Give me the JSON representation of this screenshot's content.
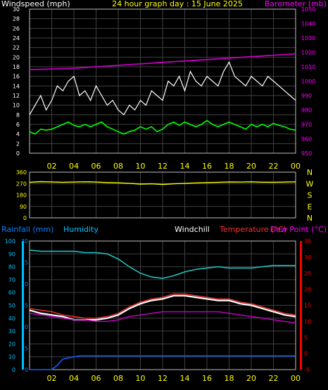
{
  "colors": {
    "background": "#000000",
    "axis": "#c0c0c0",
    "grid": "#404040",
    "label_white": "#ffffff",
    "label_yellow": "#ffff00",
    "label_magenta": "#ff00ff",
    "label_red": "#ff0000",
    "label_blue": "#0080ff",
    "label_cyan": "#00c0ff",
    "wind_gust": "#ffffff",
    "wind_avg": "#00ff00",
    "barometer": "#c000c0",
    "wind_direction": "#ffff00",
    "humidity": "#20c0c0",
    "temperature": "#ff3030",
    "dew_point": "#c000c0",
    "windchill": "#ffffff",
    "rainfall": "#1060ff"
  },
  "chart_data": [
    {
      "type": "line",
      "title": "24 hour graph day : 15 June 2025",
      "left_axis_label": "Windspeed (mph)",
      "right_axis_label": "Barometer (mb)",
      "ylim": [
        0,
        30
      ],
      "y_ticks": [
        "0",
        "2",
        "4",
        "6",
        "8",
        "10",
        "12",
        "14",
        "16",
        "18",
        "20",
        "22",
        "24",
        "26",
        "28",
        "30"
      ],
      "y2lim": [
        950,
        1050
      ],
      "y2_ticks": [
        "950",
        "960",
        "970",
        "980",
        "990",
        "1000",
        "1010",
        "1020",
        "1030",
        "1040",
        "1050"
      ],
      "xlim": [
        0,
        24
      ],
      "x_ticks": [
        "02",
        "04",
        "06",
        "08",
        "10",
        "12",
        "14",
        "16",
        "18",
        "20",
        "22",
        "00"
      ],
      "grid": true,
      "series": [
        {
          "key": "gust",
          "axis": "left",
          "x": [
            0,
            0.5,
            1,
            1.5,
            2,
            2.5,
            3,
            3.5,
            4,
            4.5,
            5,
            5.5,
            6,
            6.5,
            7,
            7.5,
            8,
            8.5,
            9,
            9.5,
            10,
            10.5,
            11,
            11.5,
            12,
            12.5,
            13,
            13.5,
            14,
            14.5,
            15,
            15.5,
            16,
            16.5,
            17,
            17.5,
            18,
            18.5,
            19,
            19.5,
            20,
            20.5,
            21,
            21.5,
            22,
            22.5,
            23,
            23.5,
            24
          ],
          "values": [
            8,
            10,
            12,
            9,
            11,
            14,
            13,
            15,
            16,
            12,
            13,
            11,
            14,
            12,
            10,
            11,
            9,
            8,
            10,
            9,
            11,
            10,
            13,
            12,
            11,
            15,
            14,
            16,
            13,
            17,
            15,
            14,
            16,
            15,
            14,
            17,
            19,
            16,
            15,
            14,
            16,
            15,
            14,
            16,
            15,
            14,
            13,
            12,
            11
          ]
        },
        {
          "key": "average",
          "axis": "left",
          "x": [
            0,
            0.5,
            1,
            1.5,
            2,
            2.5,
            3,
            3.5,
            4,
            4.5,
            5,
            5.5,
            6,
            6.5,
            7,
            7.5,
            8,
            8.5,
            9,
            9.5,
            10,
            10.5,
            11,
            11.5,
            12,
            12.5,
            13,
            13.5,
            14,
            14.5,
            15,
            15.5,
            16,
            16.5,
            17,
            17.5,
            18,
            18.5,
            19,
            19.5,
            20,
            20.5,
            21,
            21.5,
            22,
            22.5,
            23,
            23.5,
            24
          ],
          "values": [
            4.5,
            4,
            5,
            4.8,
            5,
            5.5,
            6,
            6.5,
            5.8,
            5.5,
            6,
            5.5,
            6,
            6.5,
            5.5,
            5,
            4.5,
            4,
            4.5,
            4.8,
            5.5,
            5,
            5.5,
            4.5,
            5,
            6,
            6.5,
            5.8,
            6.5,
            6,
            5.5,
            6,
            6.8,
            6,
            5.5,
            6,
            6.5,
            6,
            5.5,
            5,
            6,
            5.5,
            6,
            5.5,
            6.2,
            5.8,
            5.5,
            5,
            4.8
          ]
        },
        {
          "key": "barometer",
          "axis": "right",
          "x": [
            0,
            2,
            4,
            6,
            8,
            10,
            12,
            14,
            16,
            18,
            20,
            22,
            24
          ],
          "values": [
            1008,
            1008.5,
            1009,
            1010,
            1011,
            1012,
            1013,
            1014,
            1015,
            1016,
            1017,
            1018,
            1019
          ]
        }
      ]
    },
    {
      "type": "line",
      "title": "",
      "ylim": [
        0,
        360
      ],
      "y_ticks": [
        "0",
        "90",
        "180",
        "270",
        "360"
      ],
      "right_labels": [
        "N",
        "W",
        "S",
        "E",
        "N"
      ],
      "xlim": [
        0,
        24
      ],
      "grid": true,
      "series": [
        {
          "key": "direction",
          "x": [
            0,
            1,
            2,
            3,
            4,
            5,
            6,
            7,
            8,
            9,
            10,
            11,
            12,
            13,
            14,
            15,
            16,
            17,
            18,
            19,
            20,
            21,
            22,
            23,
            24
          ],
          "values": [
            280,
            285,
            283,
            280,
            282,
            284,
            282,
            278,
            276,
            272,
            266,
            268,
            263,
            268,
            272,
            275,
            278,
            280,
            283,
            282,
            284,
            281,
            280,
            282,
            284
          ]
        }
      ]
    },
    {
      "type": "line",
      "title": "",
      "labels": {
        "rainfall": "Rainfall (mm)",
        "humidity": "Humidity",
        "windchill": "Windchill",
        "temperature": "Temperature (°C)",
        "dew_point": "Dew Point (°C)"
      },
      "rain_ylim": [
        0,
        30
      ],
      "rain_ticks": [
        "0",
        "5",
        "10",
        "15",
        "20",
        "25",
        "30"
      ],
      "humidity_ylim": [
        0,
        100
      ],
      "humidity_ticks": [
        "0",
        "10",
        "20",
        "30",
        "40",
        "50",
        "60",
        "70",
        "80",
        "90",
        "100"
      ],
      "temp_ylim": [
        -5,
        35
      ],
      "temp_ticks": [
        "-5",
        "0",
        "5",
        "10",
        "15",
        "20",
        "25",
        "30",
        "35"
      ],
      "xlim": [
        0,
        24
      ],
      "x_ticks": [
        "02",
        "04",
        "06",
        "08",
        "10",
        "12",
        "14",
        "16",
        "18",
        "20",
        "22",
        "00"
      ],
      "grid": true,
      "series": [
        {
          "key": "humidity",
          "axis": "humidity",
          "x": [
            0,
            1,
            2,
            3,
            4,
            5,
            6,
            7,
            8,
            9,
            10,
            11,
            12,
            13,
            14,
            15,
            16,
            17,
            18,
            19,
            20,
            21,
            22,
            23,
            24
          ],
          "values": [
            93,
            92,
            92,
            92,
            92,
            91,
            91,
            90,
            86,
            80,
            75,
            72,
            71,
            73,
            76,
            78,
            79,
            80,
            79,
            79,
            79,
            80,
            81,
            81,
            81
          ]
        },
        {
          "key": "temperature",
          "axis": "temp",
          "x": [
            0,
            1,
            2,
            3,
            4,
            5,
            6,
            7,
            8,
            9,
            10,
            11,
            12,
            13,
            14,
            15,
            16,
            17,
            18,
            19,
            20,
            21,
            22,
            23,
            24
          ],
          "values": [
            14,
            13.5,
            13,
            12,
            11.5,
            11,
            11,
            11.5,
            12.5,
            14.5,
            16,
            17,
            17.5,
            18.5,
            18.5,
            18,
            17.5,
            17,
            17,
            16,
            15.5,
            14.5,
            13.5,
            12.5,
            12
          ]
        },
        {
          "key": "windchill",
          "axis": "temp",
          "x": [
            0,
            1,
            2,
            3,
            4,
            5,
            6,
            7,
            8,
            9,
            10,
            11,
            12,
            13,
            14,
            15,
            16,
            17,
            18,
            19,
            20,
            21,
            22,
            23,
            24
          ],
          "values": [
            13.5,
            12.5,
            12,
            11.5,
            10.5,
            10.5,
            10.5,
            11,
            12,
            14,
            15.5,
            16.5,
            17,
            18,
            18,
            17.5,
            17,
            16.5,
            16.5,
            15.5,
            15,
            14,
            13,
            12,
            11.5
          ]
        },
        {
          "key": "dew_point",
          "axis": "temp",
          "x": [
            0,
            1,
            2,
            3,
            4,
            5,
            6,
            7,
            8,
            9,
            10,
            11,
            12,
            13,
            14,
            15,
            16,
            17,
            18,
            19,
            20,
            21,
            22,
            23,
            24
          ],
          "values": [
            12.5,
            12,
            11.5,
            11,
            10.5,
            10.5,
            10,
            10,
            10.5,
            11.5,
            12,
            12.5,
            13,
            13,
            13,
            13,
            13,
            13,
            12.5,
            12,
            11.5,
            11,
            10.5,
            10,
            9.5
          ]
        },
        {
          "key": "rainfall",
          "axis": "rain",
          "x": [
            0,
            2,
            2.5,
            3,
            4,
            4.5,
            6,
            8,
            10,
            12,
            14,
            16,
            18,
            20,
            22,
            24
          ],
          "values": [
            0,
            0,
            1,
            2.5,
            3,
            3.2,
            3.2,
            3.2,
            3.2,
            3.2,
            3.2,
            3.2,
            3.2,
            3.2,
            3.2,
            3.2
          ]
        }
      ]
    }
  ]
}
